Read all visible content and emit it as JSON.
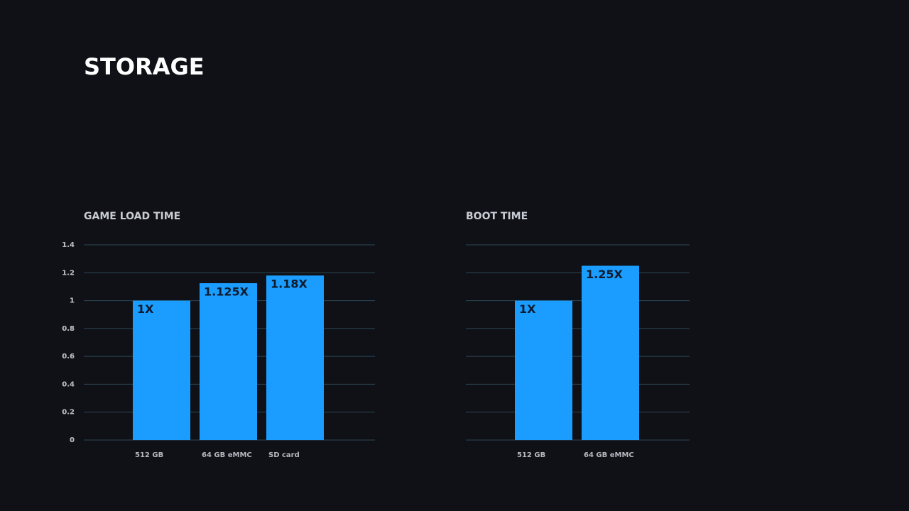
{
  "title": "STORAGE",
  "chart_data": [
    {
      "type": "bar",
      "title": "GAME LOAD TIME",
      "categories": [
        "512 GB",
        "64 GB eMMC",
        "SD card"
      ],
      "values": [
        1,
        1.125,
        1.18
      ],
      "value_labels": [
        "1X",
        "1.125X",
        "1.18X"
      ],
      "color": "#1a9dff",
      "ylim": [
        0,
        1.4
      ],
      "yticks": [
        0,
        0.2,
        0.4,
        0.6,
        0.8,
        1,
        1.2,
        1.4
      ],
      "grid": true
    },
    {
      "type": "bar",
      "title": "BOOT TIME",
      "categories": [
        "512 GB",
        "64 GB eMMC"
      ],
      "values": [
        1,
        1.25
      ],
      "value_labels": [
        "1X",
        "1.25X"
      ],
      "color": "#1a9dff",
      "ylim": [
        0,
        1.4
      ],
      "yticks": [
        0,
        0.2,
        0.4,
        0.6,
        0.8,
        1,
        1.2,
        1.4
      ],
      "grid": true
    }
  ]
}
